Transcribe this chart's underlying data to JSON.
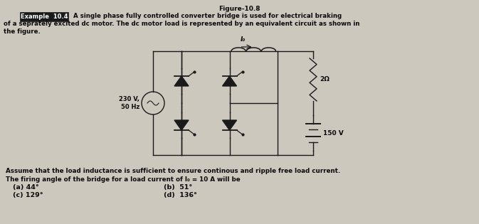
{
  "title": "Figure-10.8",
  "example_label": "Example  10.4",
  "line1": "A single phase fully controlled converter bridge is used for electrical braking",
  "line2": "of a seprately excited dc motor. The dc motor load is represented by an equivalent circuit as shown in",
  "line3": "the figure.",
  "assume_text": "Assume that the load inductance is sufficient to ensure continous and ripple free load current.",
  "firing_text": "The firing angle of the bridge for a load current of I₀ = 10 A will be",
  "opt_a": "(a) 44°",
  "opt_b": "(b)  51°",
  "opt_c": "(c) 129°",
  "opt_d": "(d)  136°",
  "voltage_source": "230 V,\n50 Hz",
  "resistance": "2Ω",
  "back_emf": "150 V",
  "current_label": "I₀",
  "bg_color": "#cdc8be",
  "text_color": "#0a0a0a",
  "box_bg": "#1a1a1a",
  "box_text": "#ffffff",
  "circuit_color": "#1a1a1a"
}
